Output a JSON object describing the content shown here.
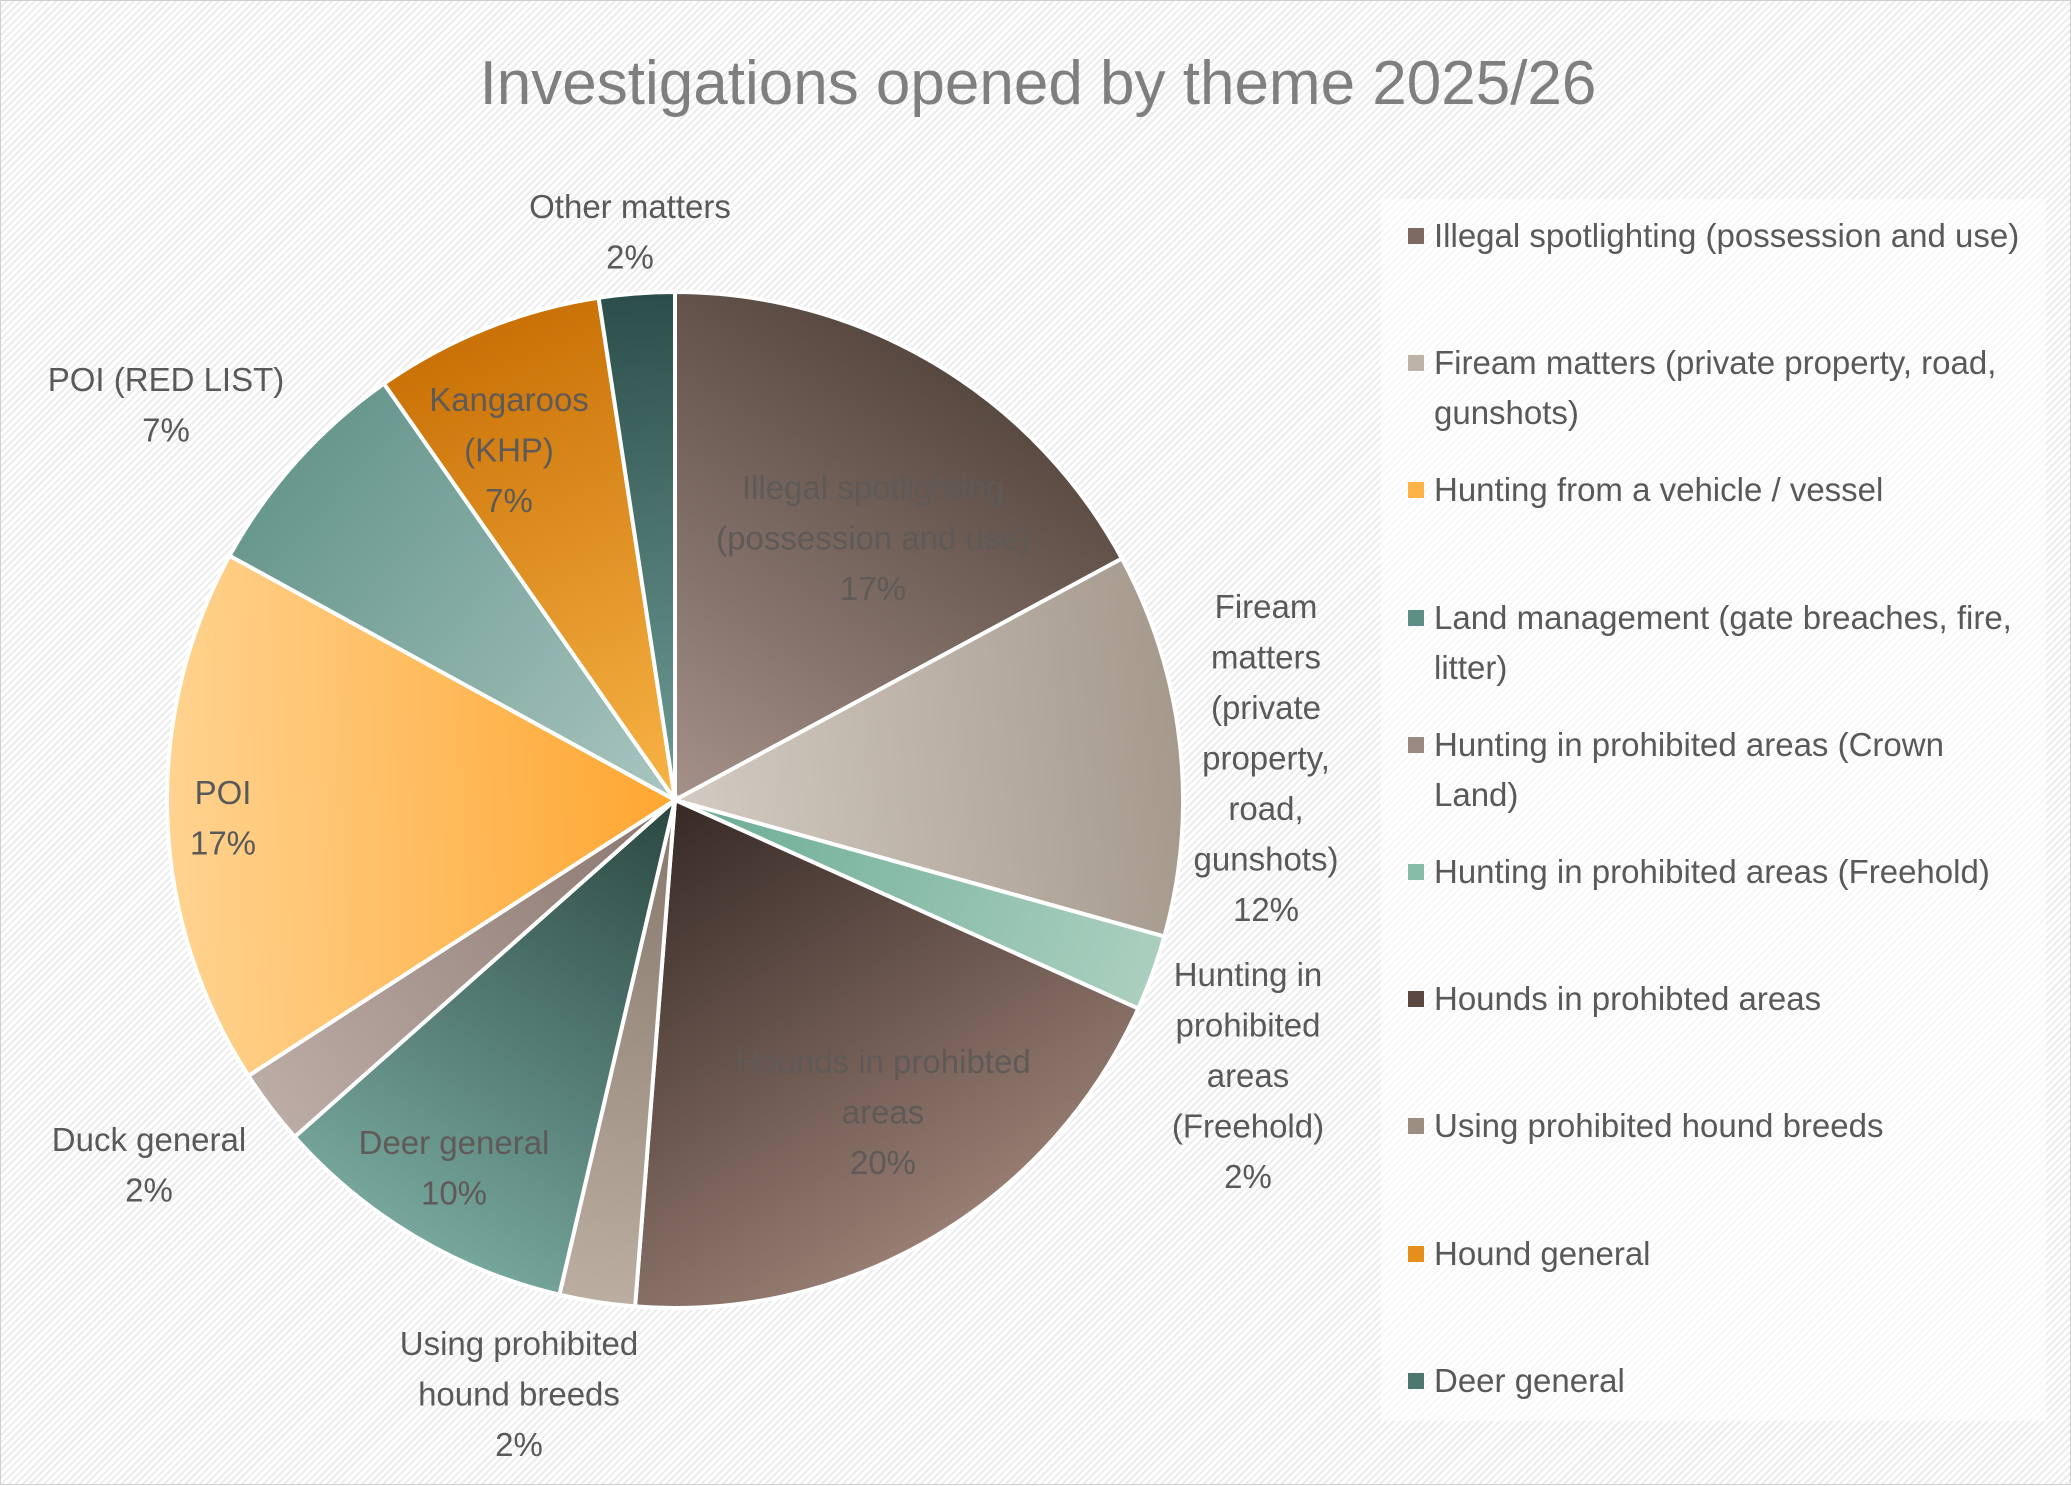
{
  "chart_data": {
    "type": "pie",
    "title": "Investigations opened by theme 2025/26",
    "legend_position": "right",
    "slices": [
      {
        "name": "Illegal spotlighting (possession and use)",
        "value": 17.1,
        "pct_label": "17%",
        "label_lines": [
          "Illegal spotlighting",
          "(possession and use)",
          "17%"
        ],
        "color_dark": "#574840",
        "color_light": "#a59189"
      },
      {
        "name": "Fiream matters (private property, road, gunshots)",
        "value": 12.2,
        "pct_label": "12%",
        "label_lines": [
          "Fiream",
          "matters",
          "(private",
          "property,",
          "road,",
          "gunshots)",
          "12%"
        ],
        "color_dark": "#a69a8d",
        "color_light": "#d3cbc2"
      },
      {
        "name": "Hunting in prohibited areas (Freehold)",
        "value": 2.4,
        "pct_label": "2%",
        "label_lines": [
          "Hunting in",
          "prohibited",
          "areas",
          "(Freehold)",
          "2%"
        ],
        "color_dark": "#6aac95",
        "color_light": "#abcfbf"
      },
      {
        "name": "Hounds in prohibted areas",
        "value": 19.5,
        "pct_label": "20%",
        "label_lines": [
          "Hounds in prohibted",
          "areas",
          "20%"
        ],
        "color_dark": "#362925",
        "color_light": "#977d72"
      },
      {
        "name": "Using prohibited hound breeds",
        "value": 2.4,
        "pct_label": "2%",
        "label_lines": [
          "Using prohibited",
          "hound breeds",
          "2%"
        ],
        "color_dark": "#85786b",
        "color_light": "#bbaea0"
      },
      {
        "name": "Deer general",
        "value": 9.8,
        "pct_label": "10%",
        "label_lines": [
          "Deer general",
          "10%"
        ],
        "color_dark": "#2a4741",
        "color_light": "#76a69c"
      },
      {
        "name": "Duck general",
        "value": 2.4,
        "pct_label": "2%",
        "label_lines": [
          "Duck general",
          "2%"
        ],
        "color_dark": "#8a766f",
        "color_light": "#bcaca6"
      },
      {
        "name": "POI",
        "value": 17.1,
        "pct_label": "17%",
        "label_lines": [
          "POI",
          "17%"
        ],
        "color_dark": "#ffa630",
        "color_light": "#ffd390"
      },
      {
        "name": "POI (RED LIST)",
        "value": 7.3,
        "pct_label": "7%",
        "label_lines": [
          "POI (RED LIST)",
          "7%"
        ],
        "color_dark": "#67978d",
        "color_light": "#a9c5bf"
      },
      {
        "name": "Kangaroos (KHP)",
        "value": 7.3,
        "pct_label": "7%",
        "label_lines": [
          "Kangaroos",
          "(KHP)",
          "7%"
        ],
        "color_dark": "#c97106",
        "color_light": "#f9b445"
      },
      {
        "name": "Other matters",
        "value": 2.4,
        "pct_label": "2%",
        "label_lines": [
          "Other matters",
          "2%"
        ],
        "color_dark": "#2c4e4a",
        "color_light": "#6f9d97"
      }
    ],
    "legend": [
      {
        "label": "Illegal spotlighting (possession and use)",
        "color": "#7d6b63"
      },
      {
        "label": "Fiream matters (private property, road, gunshots)",
        "color": "#bdb3a8"
      },
      {
        "label": "Hunting from a vehicle / vessel",
        "color": "#ffb347"
      },
      {
        "label": "Land management (gate breaches, fire, litter)",
        "color": "#5d8f86"
      },
      {
        "label": "Hunting in prohibited areas (Crown Land)",
        "color": "#9a8882"
      },
      {
        "label": "Hunting in prohibited areas (Freehold)",
        "color": "#86bca8"
      },
      {
        "label": "Hounds in prohibted areas",
        "color": "#5c4842"
      },
      {
        "label": "Using prohibited hound breeds",
        "color": "#9c8f82"
      },
      {
        "label": "Hound general",
        "color": "#e38f1a"
      },
      {
        "label": "Deer general",
        "color": "#4c7870"
      }
    ]
  }
}
